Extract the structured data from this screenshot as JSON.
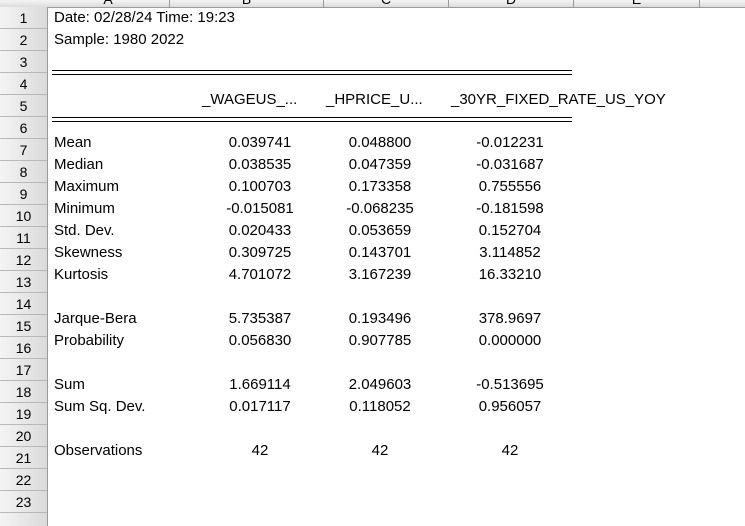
{
  "columns": [
    "A",
    "B",
    "C",
    "D",
    "E"
  ],
  "rows": [
    "1",
    "2",
    "3",
    "4",
    "5",
    "6",
    "7",
    "8",
    "9",
    "10",
    "11",
    "12",
    "13",
    "14",
    "15",
    "16",
    "17",
    "18",
    "19",
    "20",
    "21",
    "22",
    "23"
  ],
  "info": {
    "date_line": "Date: 02/28/24   Time: 19:23",
    "sample_line": "Sample: 1980 2022"
  },
  "headers": {
    "b": "_WAGEUS_...",
    "c": "_HPRICE_U...",
    "d": "_30YR_FIXED_RATE_US_YOY"
  },
  "stats": [
    {
      "label": "Mean",
      "b": "0.039741",
      "c": "0.048800",
      "d": "-0.012231"
    },
    {
      "label": "Median",
      "b": "0.038535",
      "c": "0.047359",
      "d": "-0.031687"
    },
    {
      "label": "Maximum",
      "b": "0.100703",
      "c": "0.173358",
      "d": "0.755556"
    },
    {
      "label": "Minimum",
      "b": "-0.015081",
      "c": "-0.068235",
      "d": "-0.181598"
    },
    {
      "label": "Std. Dev.",
      "b": "0.020433",
      "c": "0.053659",
      "d": "0.152704"
    },
    {
      "label": "Skewness",
      "b": "0.309725",
      "c": "0.143701",
      "d": "3.114852"
    },
    {
      "label": "Kurtosis",
      "b": "4.701072",
      "c": "3.167239",
      "d": "16.33210"
    },
    {
      "label": "Jarque-Bera",
      "b": "5.735387",
      "c": "0.193496",
      "d": "378.9697"
    },
    {
      "label": "Probability",
      "b": "0.056830",
      "c": "0.907785",
      "d": "0.000000"
    },
    {
      "label": "Sum",
      "b": "1.669114",
      "c": "2.049603",
      "d": "-0.513695"
    },
    {
      "label": "Sum Sq. Dev.",
      "b": "0.017117",
      "c": "0.118052",
      "d": "0.956057"
    },
    {
      "label": "Observations",
      "b": "42",
      "c": "42",
      "d": "42"
    }
  ]
}
